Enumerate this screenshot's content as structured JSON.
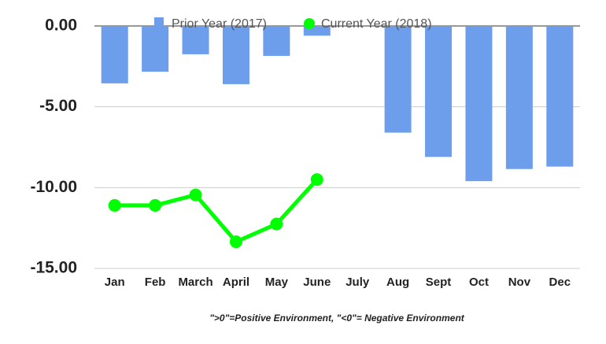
{
  "chart_data": {
    "type": "combo",
    "categories": [
      "Jan",
      "Feb",
      "March",
      "April",
      "May",
      "June",
      "July",
      "Aug",
      "Sept",
      "Oct",
      "Nov",
      "Dec"
    ],
    "series": [
      {
        "name": "Prior Year (2017)",
        "type": "bar",
        "color": "#6d9eeb",
        "values": [
          -3.55,
          -2.83,
          -1.75,
          -3.6,
          -1.85,
          -0.6,
          null,
          -6.6,
          -8.1,
          -9.6,
          -8.85,
          -8.7
        ]
      },
      {
        "name": "Current Year (2018)",
        "type": "line",
        "color": "#00ff00",
        "values": [
          -11.1,
          -11.1,
          -10.45,
          -13.35,
          -12.25,
          -9.5,
          null,
          null,
          null,
          null,
          null,
          null
        ]
      }
    ],
    "ylim": [
      -15,
      0
    ],
    "yticks": [
      {
        "value": 0,
        "label": "0.00"
      },
      {
        "value": -5,
        "label": "-5.00"
      },
      {
        "value": -10,
        "label": "-10.00"
      },
      {
        "value": -15,
        "label": "-15.00"
      }
    ],
    "grid": true,
    "legend": "top",
    "annotation": "\">0\"=Positive Environment, \"<0\"= Negative Environment"
  }
}
